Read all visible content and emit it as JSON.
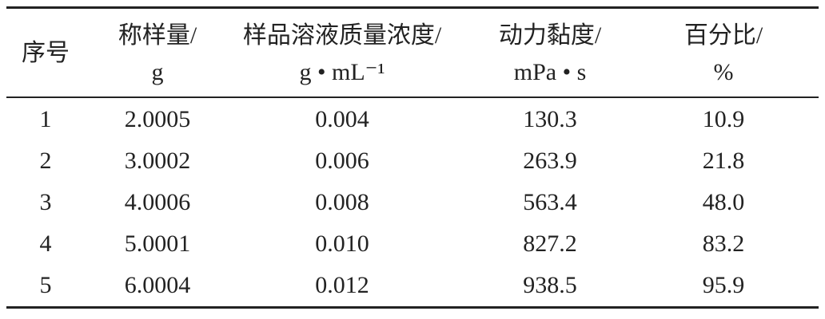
{
  "table": {
    "header": [
      [
        "序号"
      ],
      [
        "称样量/",
        "g"
      ],
      [
        "样品溶液质量浓度/",
        "g • mL⁻¹"
      ],
      [
        "动力黏度/",
        "mPa • s"
      ],
      [
        "百分比/",
        "%"
      ]
    ],
    "rows": [
      [
        "1",
        "2.0005",
        "0.004",
        "130.3",
        "10.9"
      ],
      [
        "2",
        "3.0002",
        "0.006",
        "263.9",
        "21.8"
      ],
      [
        "3",
        "4.0006",
        "0.008",
        "563.4",
        "48.0"
      ],
      [
        "4",
        "5.0001",
        "0.010",
        "827.2",
        "83.2"
      ],
      [
        "5",
        "6.0004",
        "0.012",
        "938.5",
        "95.9"
      ]
    ]
  }
}
